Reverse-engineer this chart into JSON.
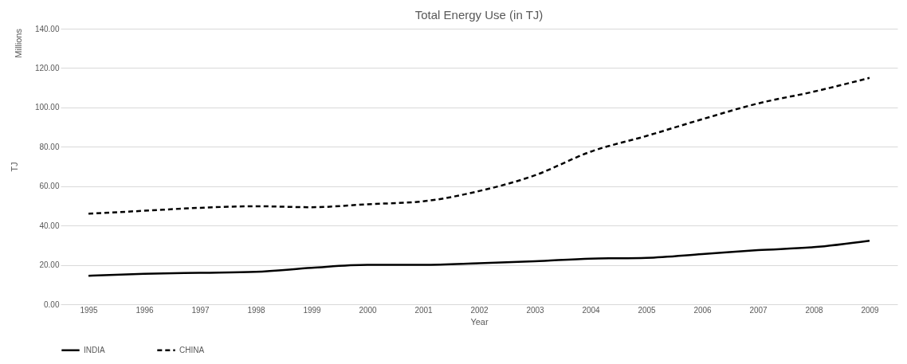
{
  "chart_data": {
    "type": "line",
    "title": "Total Energy Use (in TJ)",
    "xlabel": "Year",
    "ylabel": "TJ",
    "annotations": [
      "Millions"
    ],
    "categories": [
      "1995",
      "1996",
      "1997",
      "1998",
      "1999",
      "2000",
      "2001",
      "2002",
      "2003",
      "2004",
      "2005",
      "2006",
      "2007",
      "2008",
      "2009"
    ],
    "series": [
      {
        "name": "INDIA",
        "color": "#000000",
        "line_style": "solid",
        "values": [
          14.5,
          15.5,
          16,
          16.5,
          18.5,
          20,
          20,
          20.8,
          21.8,
          23.2,
          23.6,
          25.5,
          27.5,
          29,
          32.3
        ]
      },
      {
        "name": "CHINA",
        "color": "#000000",
        "line_style": "dashed",
        "values": [
          46,
          47.5,
          49,
          49.8,
          49.3,
          50.8,
          52.3,
          57.5,
          65.5,
          77.5,
          85.5,
          94,
          102,
          108,
          115
        ]
      }
    ],
    "ylim": [
      0,
      140
    ],
    "yticks": [
      {
        "value": 0,
        "label": "0.00"
      },
      {
        "value": 20,
        "label": "20.00"
      },
      {
        "value": 40,
        "label": "40.00"
      },
      {
        "value": 60,
        "label": "60.00"
      },
      {
        "value": 80,
        "label": "80.00"
      },
      {
        "value": 100,
        "label": "100.00"
      },
      {
        "value": 120,
        "label": "120.00"
      },
      {
        "value": 140,
        "label": "140.00"
      }
    ],
    "grid": "y",
    "legend": "bottom",
    "marker": "none"
  }
}
